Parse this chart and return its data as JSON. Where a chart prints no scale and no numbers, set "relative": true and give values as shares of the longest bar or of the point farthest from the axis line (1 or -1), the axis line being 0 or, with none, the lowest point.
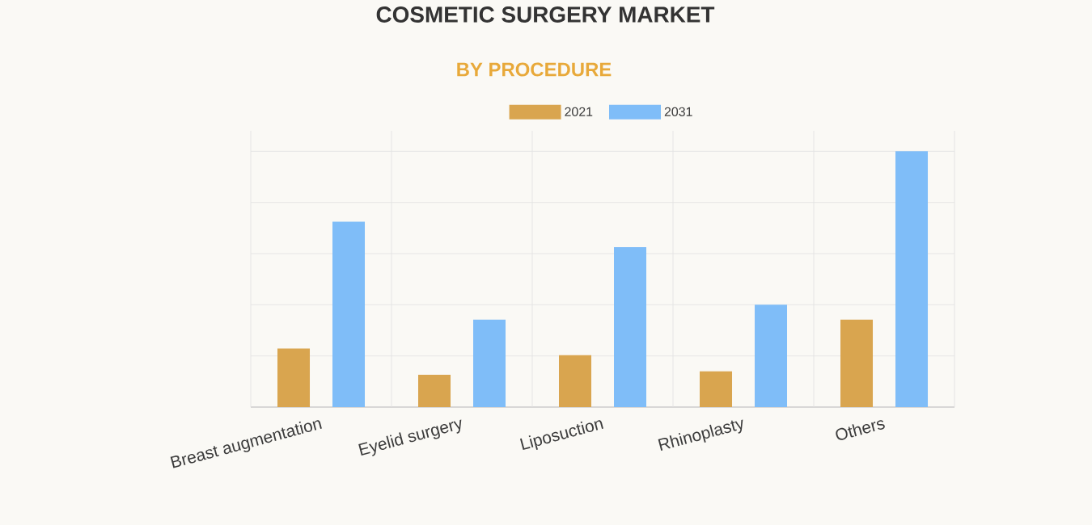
{
  "chart_data": {
    "type": "bar",
    "title": "COSMETIC SURGERY MARKET",
    "subtitle": "BY PROCEDURE",
    "categories": [
      "Breast augmentation",
      "Eyelid surgery",
      "Liposuction",
      "Rhinoplasty",
      "Others"
    ],
    "series": [
      {
        "name": "2021",
        "color": "#d9a54f",
        "values": [
          0.229,
          0.126,
          0.203,
          0.14,
          0.342
        ]
      },
      {
        "name": "2031",
        "color": "#7fbdf8",
        "values": [
          0.725,
          0.342,
          0.625,
          0.4,
          1
        ]
      }
    ],
    "relative": true,
    "grid": true,
    "legend": "top"
  }
}
